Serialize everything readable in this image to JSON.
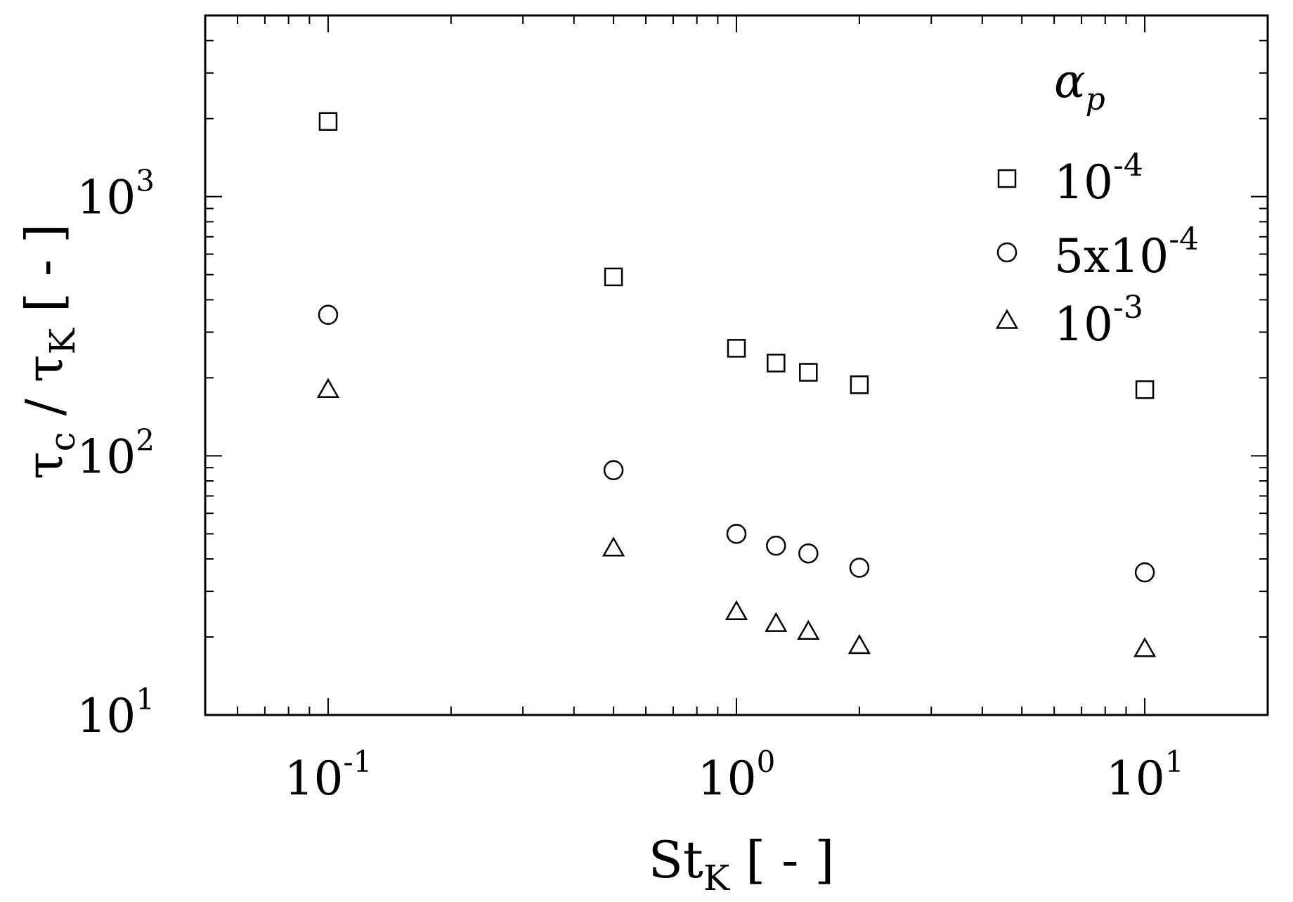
{
  "chart_data": {
    "type": "scatter",
    "x_scale": "log",
    "y_scale": "log",
    "xlim": [
      0.05,
      20
    ],
    "ylim": [
      10,
      5000
    ],
    "xlabel": {
      "main": "St",
      "sub": "K",
      "suffix": " [ - ]"
    },
    "ylabel": {
      "a": "τ",
      "a_sub": "c",
      "sep": " / ",
      "b": "τ",
      "b_sub": "K",
      "suffix": " [ - ]"
    },
    "x_ticks": [
      {
        "value": 0.1,
        "base": "10",
        "exp": "-1"
      },
      {
        "value": 1,
        "base": "10",
        "exp": "0"
      },
      {
        "value": 10,
        "base": "10",
        "exp": "1"
      }
    ],
    "y_ticks": [
      {
        "value": 10,
        "base": "10",
        "exp": "1"
      },
      {
        "value": 100,
        "base": "10",
        "exp": "2"
      },
      {
        "value": 1000,
        "base": "10",
        "exp": "3"
      }
    ],
    "legend": {
      "title": "α",
      "title_sub": "p",
      "placement": "top-right"
    },
    "series": [
      {
        "name": "10^-4",
        "label_base": "10",
        "label_exp": "-4",
        "marker": "square",
        "x": [
          0.1,
          0.5,
          1.0,
          1.25,
          1.5,
          2.0,
          10.0
        ],
        "y": [
          1950,
          490,
          260,
          228,
          210,
          188,
          180
        ]
      },
      {
        "name": "5x10^-4",
        "label_base": "5x10",
        "label_exp": "-4",
        "marker": "circle",
        "x": [
          0.1,
          0.5,
          1.0,
          1.25,
          1.5,
          2.0,
          10.0
        ],
        "y": [
          350,
          88,
          50,
          45,
          42,
          37,
          35.5
        ]
      },
      {
        "name": "10^-3",
        "label_base": "10",
        "label_exp": "-3",
        "marker": "triangle",
        "x": [
          0.1,
          0.5,
          1.0,
          1.25,
          1.5,
          2.0,
          10.0
        ],
        "y": [
          180,
          44,
          25,
          22.5,
          21,
          18.5,
          18
        ]
      }
    ]
  }
}
